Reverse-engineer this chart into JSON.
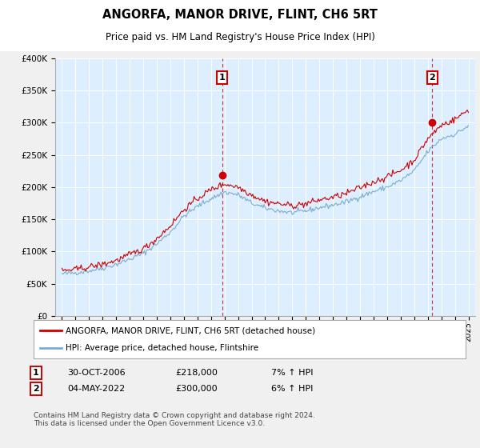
{
  "title": "ANGORFA, MANOR DRIVE, FLINT, CH6 5RT",
  "subtitle": "Price paid vs. HM Land Registry's House Price Index (HPI)",
  "red_label": "ANGORFA, MANOR DRIVE, FLINT, CH6 5RT (detached house)",
  "blue_label": "HPI: Average price, detached house, Flintshire",
  "point1_date": "30-OCT-2006",
  "point1_price": "£218,000",
  "point1_hpi": "7% ↑ HPI",
  "point1_x": 2006.83,
  "point1_y": 218000,
  "point2_date": "04-MAY-2022",
  "point2_price": "£300,000",
  "point2_hpi": "6% ↑ HPI",
  "point2_x": 2022.34,
  "point2_y": 300000,
  "ylim": [
    0,
    400000
  ],
  "yticks": [
    0,
    50000,
    100000,
    150000,
    200000,
    250000,
    300000,
    350000,
    400000
  ],
  "ytick_labels": [
    "£0",
    "£50K",
    "£100K",
    "£150K",
    "£200K",
    "£250K",
    "£300K",
    "£350K",
    "£400K"
  ],
  "xlim": [
    1994.5,
    2025.5
  ],
  "xticks": [
    1995,
    1996,
    1997,
    1998,
    1999,
    2000,
    2001,
    2002,
    2003,
    2004,
    2005,
    2006,
    2007,
    2008,
    2009,
    2010,
    2011,
    2012,
    2013,
    2014,
    2015,
    2016,
    2017,
    2018,
    2019,
    2020,
    2021,
    2022,
    2023,
    2024,
    2025
  ],
  "red_color": "#cc0000",
  "blue_color": "#7aadcc",
  "plot_bg_color": "#ddeeff",
  "bg_color": "#f0f0f0",
  "outer_bg": "#f0f0f0",
  "grid_color": "#ffffff",
  "footnote": "Contains HM Land Registry data © Crown copyright and database right 2024.\nThis data is licensed under the Open Government Licence v3.0."
}
